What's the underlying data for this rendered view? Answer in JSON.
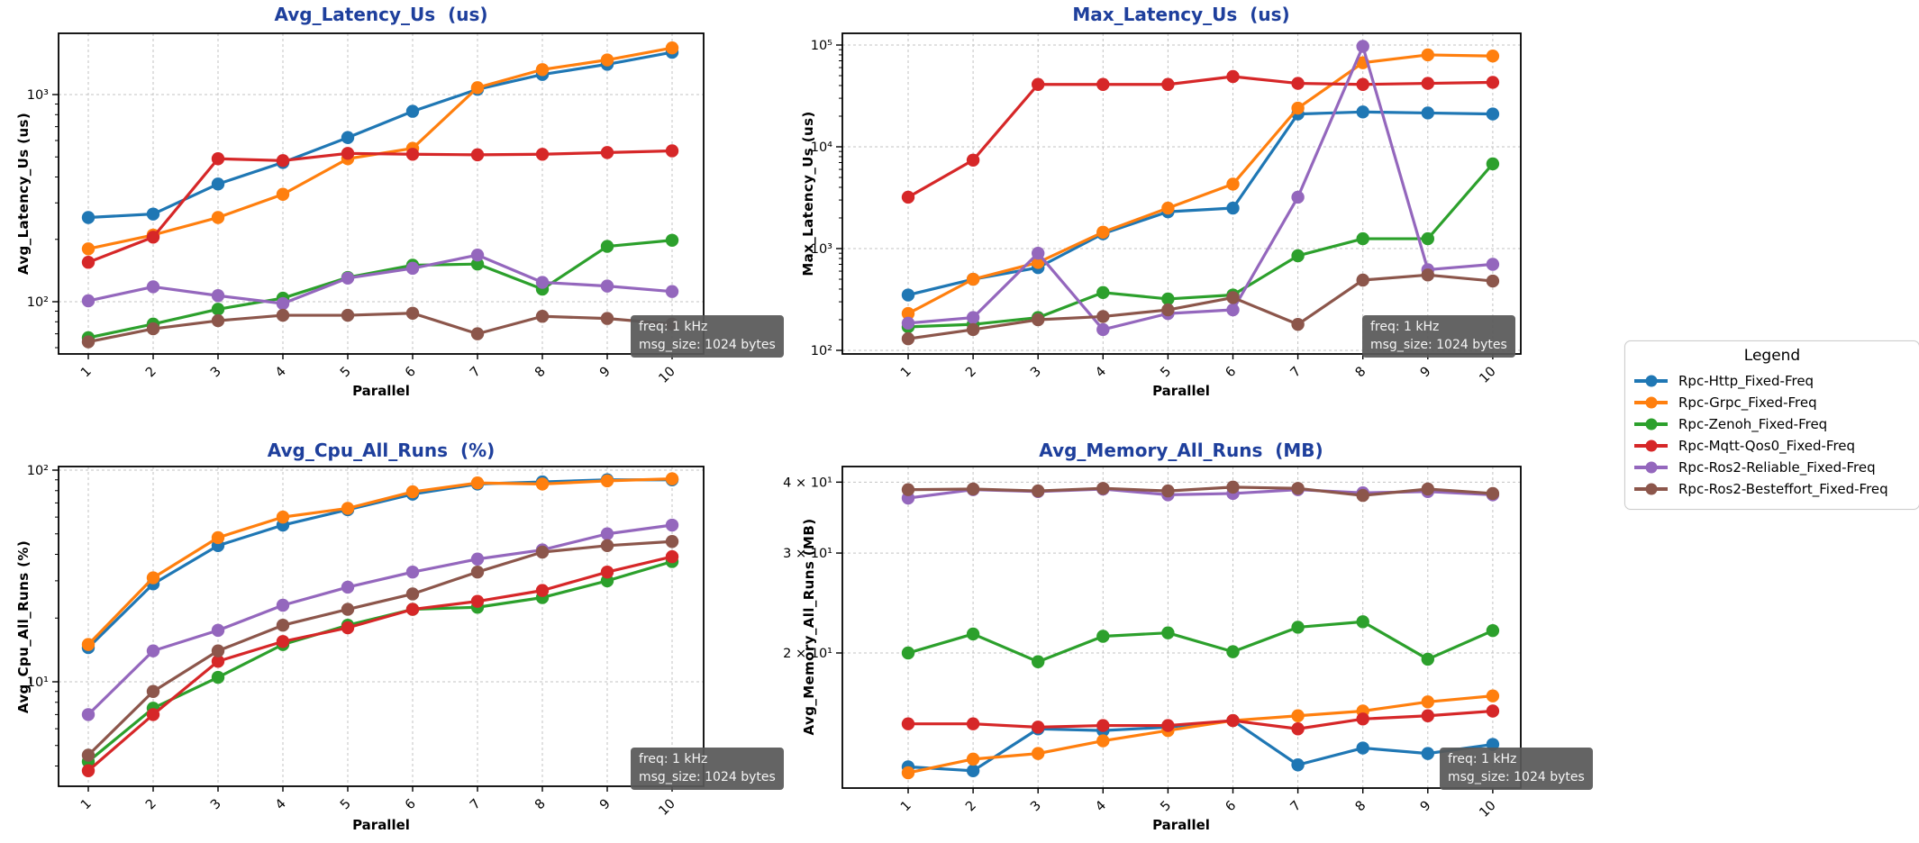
{
  "style": {
    "title_color": "#1e3f9c",
    "grid_color": "#c3c3c3"
  },
  "annotation": {
    "line1": "freq: 1 kHz",
    "line2": "msg_size: 1024 bytes",
    "bg": "#595959",
    "text_color": "#f5f5f5"
  },
  "legend": {
    "title": "Legend",
    "items": [
      {
        "label": "Rpc-Http_Fixed-Freq",
        "color": "#1f77b4"
      },
      {
        "label": "Rpc-Grpc_Fixed-Freq",
        "color": "#ff7f0e"
      },
      {
        "label": "Rpc-Zenoh_Fixed-Freq",
        "color": "#2ca02c"
      },
      {
        "label": "Rpc-Mqtt-Qos0_Fixed-Freq",
        "color": "#d62728"
      },
      {
        "label": "Rpc-Ros2-Reliable_Fixed-Freq",
        "color": "#9467bd"
      },
      {
        "label": "Rpc-Ros2-Besteffort_Fixed-Freq",
        "color": "#8c564b"
      }
    ]
  },
  "chart_data": [
    {
      "type": "line",
      "title": "Avg_Latency_Us  (us)",
      "ylabel": "Avg_Latency_Us (us)",
      "xlabel": "Parallel",
      "yscale": "log",
      "grid": true,
      "x": [
        1,
        2,
        3,
        4,
        5,
        6,
        7,
        8,
        9,
        10
      ],
      "ylim": [
        57,
        1975
      ],
      "yticks": [
        {
          "v": 100,
          "label": "10²"
        },
        {
          "v": 1000,
          "label": "10³"
        }
      ],
      "series": [
        {
          "name": "Rpc-Http_Fixed-Freq",
          "values": [
            255,
            265,
            370,
            470,
            620,
            830,
            1060,
            1250,
            1400,
            1600
          ]
        },
        {
          "name": "Rpc-Grpc_Fixed-Freq",
          "values": [
            180,
            210,
            255,
            330,
            490,
            550,
            1080,
            1320,
            1470,
            1680
          ]
        },
        {
          "name": "Rpc-Zenoh_Fixed-Freq",
          "values": [
            67,
            78,
            92,
            104,
            131,
            150,
            152,
            115,
            185,
            198
          ]
        },
        {
          "name": "Rpc-Mqtt-Qos0_Fixed-Freq",
          "values": [
            155,
            205,
            490,
            480,
            520,
            515,
            512,
            515,
            525,
            535
          ]
        },
        {
          "name": "Rpc-Ros2-Reliable_Fixed-Freq",
          "values": [
            101,
            118,
            107,
            98,
            130,
            145,
            168,
            124,
            119,
            112
          ]
        },
        {
          "name": "Rpc-Ros2-Besteffort_Fixed-Freq",
          "values": [
            64,
            74,
            81,
            86,
            86,
            88,
            70,
            85,
            83,
            78
          ]
        }
      ]
    },
    {
      "type": "line",
      "title": "Max_Latency_Us  (us)",
      "ylabel": "Max_Latency_Us (us)",
      "xlabel": "Parallel",
      "yscale": "log",
      "grid": true,
      "x": [
        1,
        2,
        3,
        4,
        5,
        6,
        7,
        8,
        9,
        10
      ],
      "ylim": [
        92,
        130000
      ],
      "yticks": [
        {
          "v": 100,
          "label": "10²"
        },
        {
          "v": 1000,
          "label": "10³"
        },
        {
          "v": 10000,
          "label": "10⁴"
        },
        {
          "v": 100000,
          "label": "10⁵"
        }
      ],
      "series": [
        {
          "name": "Rpc-Http_Fixed-Freq",
          "values": [
            350,
            500,
            650,
            1400,
            2300,
            2500,
            21000,
            22000,
            21500,
            21000
          ]
        },
        {
          "name": "Rpc-Grpc_Fixed-Freq",
          "values": [
            230,
            500,
            730,
            1450,
            2500,
            4300,
            24000,
            67000,
            80000,
            78000
          ]
        },
        {
          "name": "Rpc-Zenoh_Fixed-Freq",
          "values": [
            170,
            180,
            210,
            370,
            320,
            350,
            850,
            1250,
            1250,
            6800
          ]
        },
        {
          "name": "Rpc-Mqtt-Qos0_Fixed-Freq",
          "values": [
            3200,
            7400,
            41000,
            41000,
            41000,
            49000,
            42000,
            41000,
            42000,
            43000
          ]
        },
        {
          "name": "Rpc-Ros2-Reliable_Fixed-Freq",
          "values": [
            185,
            210,
            900,
            160,
            230,
            250,
            3200,
            97000,
            620,
            700
          ]
        },
        {
          "name": "Rpc-Ros2-Besteffort_Fixed-Freq",
          "values": [
            130,
            160,
            200,
            215,
            250,
            330,
            180,
            490,
            550,
            480
          ]
        }
      ]
    },
    {
      "type": "line",
      "title": "Avg_Cpu_All_Runs  (%)",
      "ylabel": "Avg_Cpu_All_Runs (%)",
      "xlabel": "Parallel",
      "yscale": "log",
      "grid": true,
      "x": [
        1,
        2,
        3,
        4,
        5,
        6,
        7,
        8,
        9,
        10
      ],
      "ylim": [
        3.1,
        104
      ],
      "yticks": [
        {
          "v": 10,
          "label": "10¹"
        },
        {
          "v": 100,
          "label": "10²"
        }
      ],
      "series": [
        {
          "name": "Rpc-Http_Fixed-Freq",
          "values": [
            14.5,
            29,
            44,
            55,
            65,
            77,
            86,
            88,
            90,
            90
          ]
        },
        {
          "name": "Rpc-Grpc_Fixed-Freq",
          "values": [
            15,
            31,
            48,
            60,
            66,
            79,
            87,
            86,
            89,
            91
          ]
        },
        {
          "name": "Rpc-Zenoh_Fixed-Freq",
          "values": [
            4.2,
            7.5,
            10.5,
            15,
            18.5,
            22,
            22.5,
            25,
            30,
            37
          ]
        },
        {
          "name": "Rpc-Mqtt-Qos0_Fixed-Freq",
          "values": [
            3.8,
            7,
            12.5,
            15.5,
            18,
            22,
            24,
            27,
            33,
            39
          ]
        },
        {
          "name": "Rpc-Ros2-Reliable_Fixed-Freq",
          "values": [
            7,
            14,
            17.5,
            23,
            28,
            33,
            38,
            42,
            50,
            55
          ]
        },
        {
          "name": "Rpc-Ros2-Besteffort_Fixed-Freq",
          "values": [
            4.5,
            9,
            14,
            18.5,
            22,
            26,
            33,
            41,
            44,
            46
          ]
        }
      ]
    },
    {
      "type": "line",
      "title": "Avg_Memory_All_Runs  (MB)",
      "ylabel": "Avg_Memory_All_Runs (MB)",
      "xlabel": "Parallel",
      "yscale": "log",
      "grid": true,
      "x": [
        1,
        2,
        3,
        4,
        5,
        6,
        7,
        8,
        9,
        10
      ],
      "ylim": [
        11.6,
        42.7
      ],
      "yticks": [
        {
          "v": 20,
          "label": "2 × 10¹"
        },
        {
          "v": 30,
          "label": "3 × 10¹"
        },
        {
          "v": 40,
          "label": "4 × 10¹"
        }
      ],
      "series": [
        {
          "name": "Rpc-Http_Fixed-Freq",
          "values": [
            12.6,
            12.4,
            14.7,
            14.6,
            14.8,
            15.2,
            12.7,
            13.6,
            13.3,
            13.8
          ]
        },
        {
          "name": "Rpc-Grpc_Fixed-Freq",
          "values": [
            12.3,
            13.0,
            13.3,
            14.0,
            14.6,
            15.2,
            15.5,
            15.8,
            16.4,
            16.8
          ]
        },
        {
          "name": "Rpc-Zenoh_Fixed-Freq",
          "values": [
            20.0,
            21.6,
            19.3,
            21.4,
            21.7,
            20.1,
            22.2,
            22.7,
            19.5,
            21.9
          ]
        },
        {
          "name": "Rpc-Mqtt-Qos0_Fixed-Freq",
          "values": [
            15.0,
            15.0,
            14.8,
            14.9,
            14.9,
            15.2,
            14.7,
            15.3,
            15.5,
            15.8
          ]
        },
        {
          "name": "Rpc-Ros2-Reliable_Fixed-Freq",
          "values": [
            37.5,
            38.8,
            38.5,
            38.9,
            38.0,
            38.2,
            38.8,
            38.3,
            38.5,
            38.0
          ]
        },
        {
          "name": "Rpc-Ros2-Besteffort_Fixed-Freq",
          "values": [
            38.8,
            38.9,
            38.6,
            39.0,
            38.6,
            39.2,
            39.0,
            37.9,
            38.9,
            38.2
          ]
        }
      ]
    }
  ]
}
